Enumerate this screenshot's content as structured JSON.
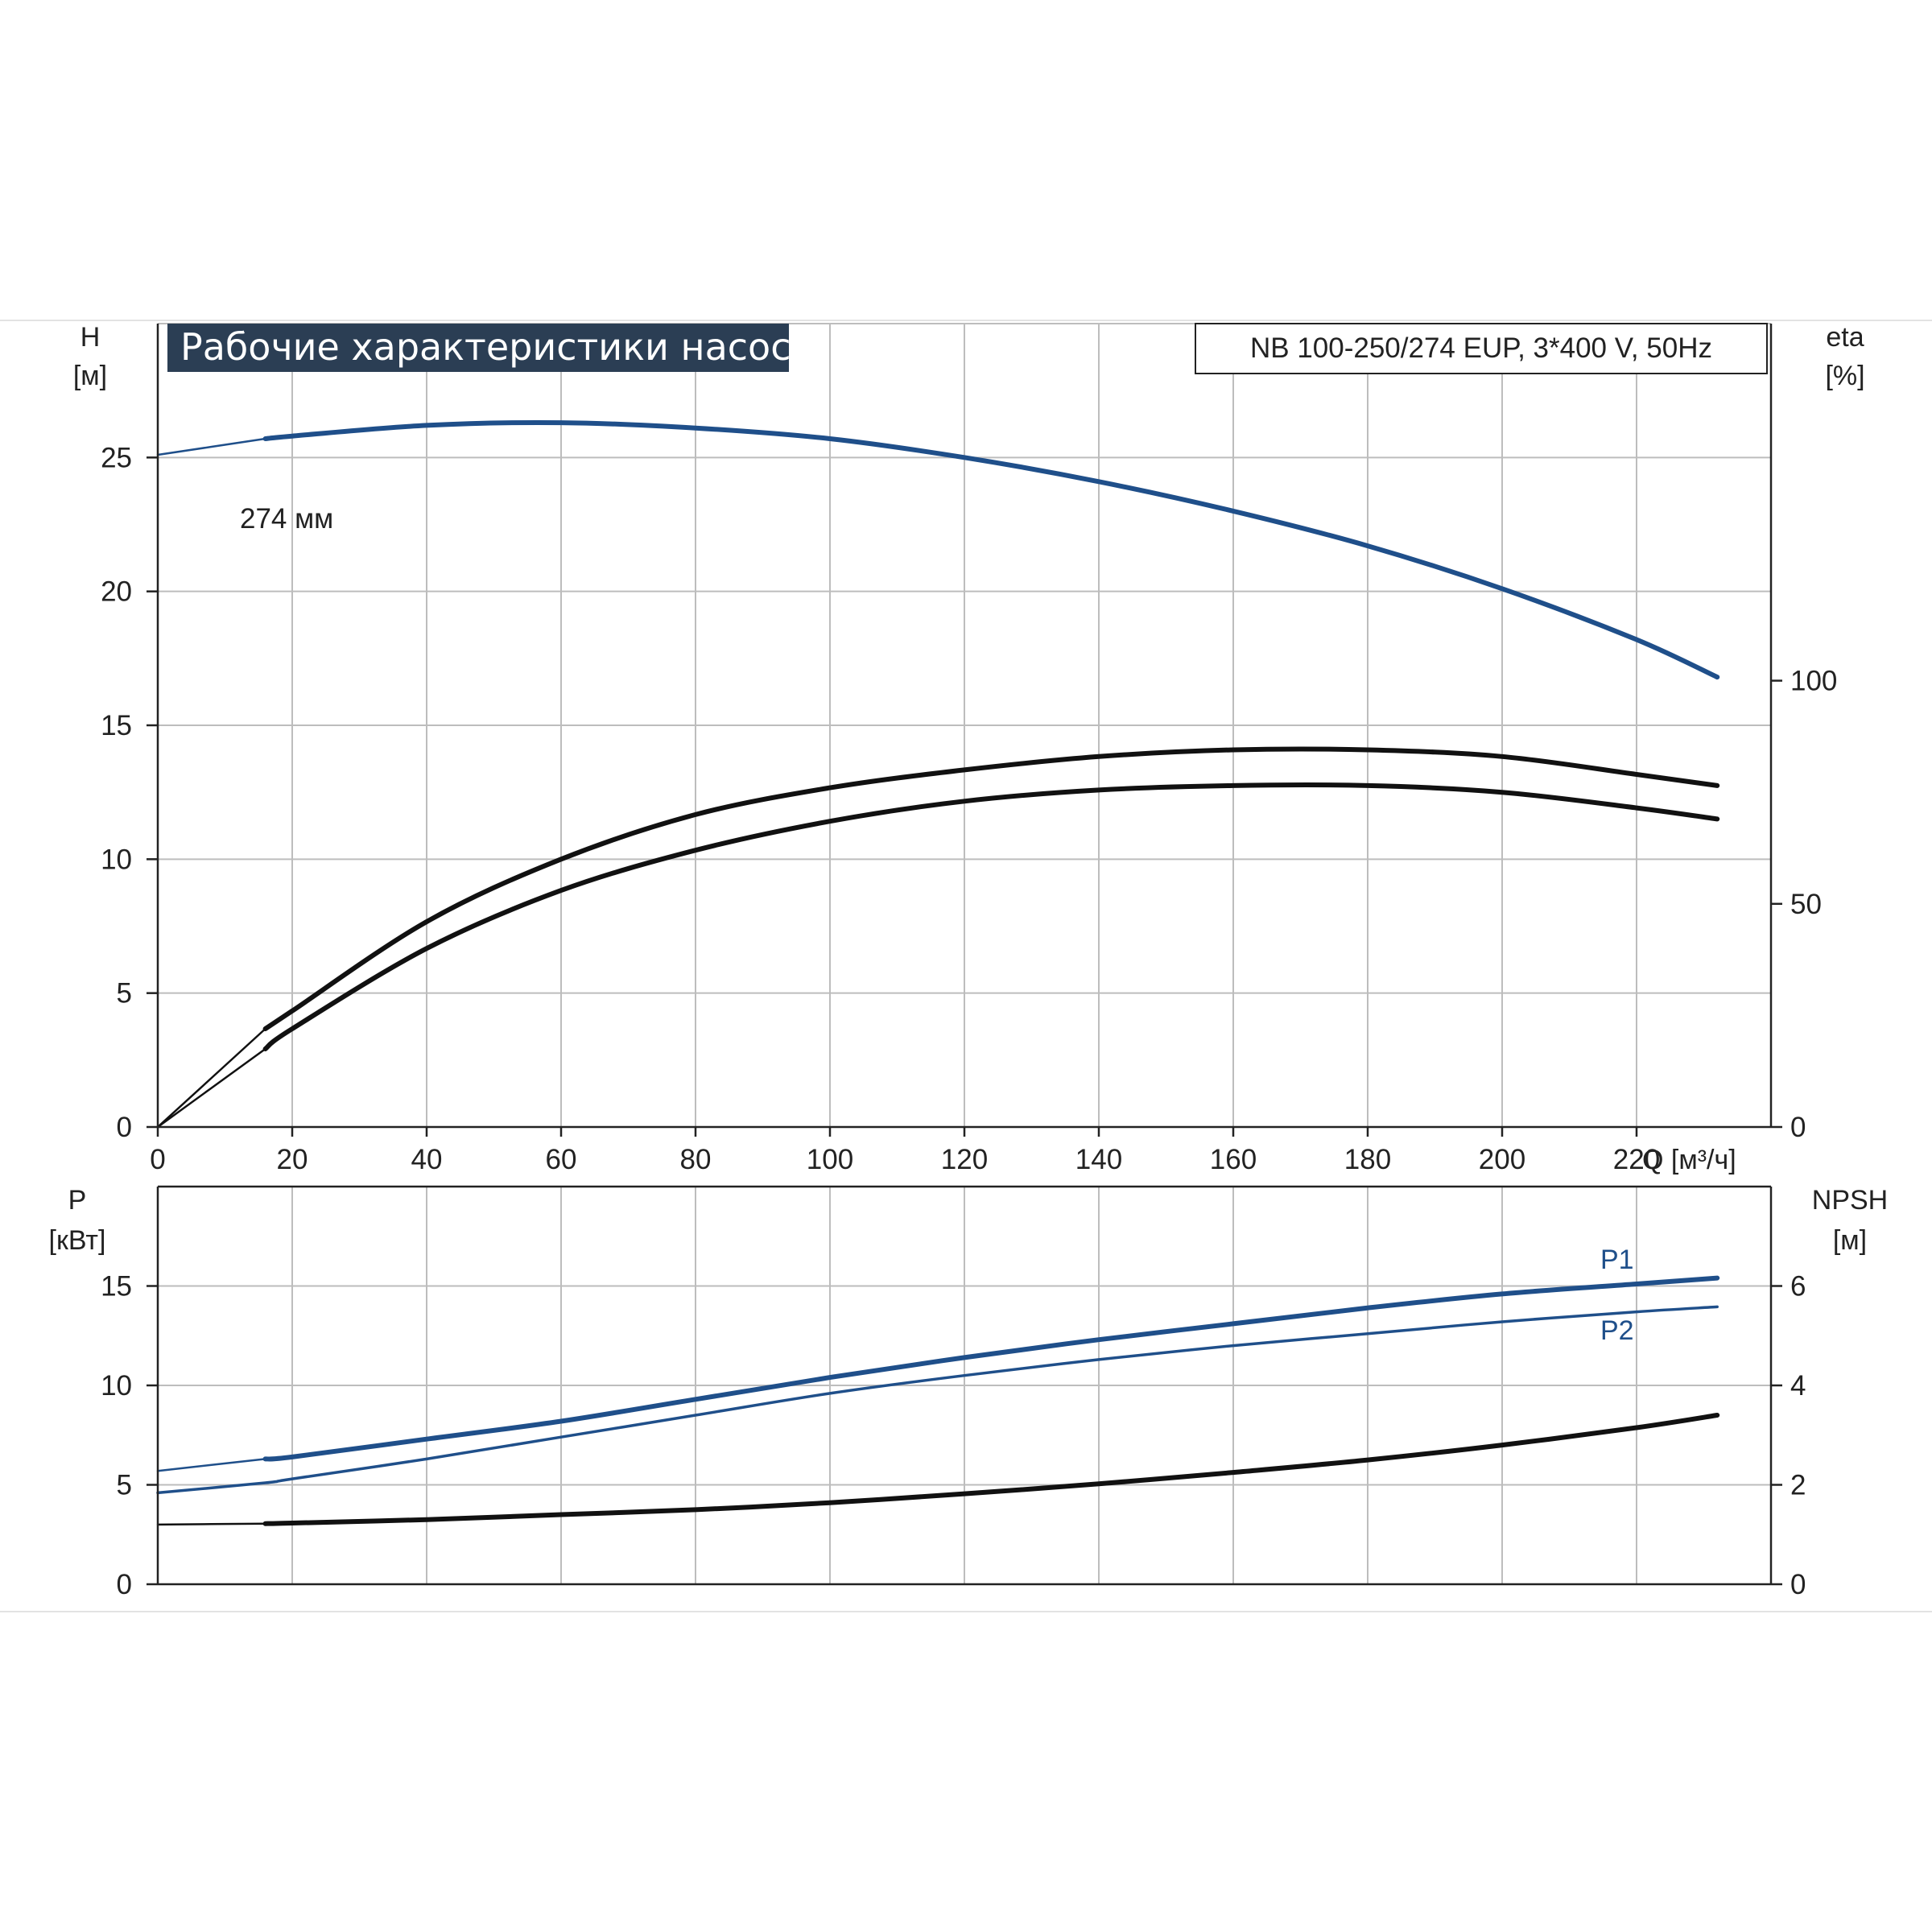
{
  "chart_data": [
    {
      "type": "line",
      "title": "Рабочие характеристики насоса",
      "model": "NB 100-250/274 EUP, 3*400 V, 50Hz",
      "xlabel": "Q [м³/ч]",
      "x_ticks": [
        "0",
        "20",
        "40",
        "60",
        "80",
        "100",
        "120",
        "140",
        "160",
        "180",
        "200",
        "220"
      ],
      "xlim": [
        0,
        240
      ],
      "y_left": {
        "label_line1": "H",
        "label_line2": "[м]",
        "ticks": [
          "0",
          "5",
          "10",
          "15",
          "20",
          "25"
        ],
        "ylim": [
          0,
          30
        ]
      },
      "y_right": {
        "label_line1": "eta",
        "label_line2": "[%]",
        "ticks": [
          "0",
          "50",
          "100"
        ],
        "ylim": [
          0,
          180
        ]
      },
      "grid": true,
      "annotation": "274 мм",
      "series": [
        {
          "id": "H",
          "axis": "left",
          "color": "#1f4f8a",
          "x": [
            0,
            16,
            20,
            40,
            60,
            80,
            100,
            120,
            140,
            160,
            180,
            200,
            220,
            232
          ],
          "y": [
            25.1,
            25.7,
            25.8,
            26.2,
            26.3,
            26.1,
            25.7,
            25.0,
            24.1,
            23.0,
            21.7,
            20.1,
            18.2,
            16.8
          ]
        },
        {
          "id": "eta_1",
          "axis": "right",
          "color": "#111111",
          "x": [
            0,
            16,
            20,
            40,
            60,
            80,
            100,
            120,
            140,
            160,
            180,
            200,
            220,
            232
          ],
          "y": [
            0,
            22,
            26,
            46,
            60,
            70,
            76,
            80,
            83,
            84.5,
            84.5,
            83,
            79,
            76.5
          ]
        },
        {
          "id": "eta_2",
          "axis": "right",
          "color": "#111111",
          "x": [
            0,
            16,
            20,
            40,
            60,
            80,
            100,
            120,
            140,
            160,
            180,
            200,
            220,
            232
          ],
          "y": [
            0,
            17.5,
            22,
            40,
            53,
            62,
            68.5,
            73,
            75.5,
            76.5,
            76.5,
            75,
            71.5,
            69
          ]
        }
      ]
    },
    {
      "type": "line",
      "xlim": [
        0,
        240
      ],
      "y_left": {
        "label_line1": "P",
        "label_line2": "[кВт]",
        "ticks": [
          "0",
          "5",
          "10",
          "15"
        ],
        "ylim": [
          0,
          20
        ]
      },
      "y_right": {
        "label_line1": "NPSH",
        "label_line2": "[м]",
        "ticks": [
          "0",
          "2",
          "4",
          "6"
        ],
        "ylim": [
          0,
          8
        ]
      },
      "grid": true,
      "series": [
        {
          "id": "P1",
          "name": "P1",
          "axis": "left",
          "color": "#1f4f8a",
          "x": [
            0,
            16,
            20,
            40,
            60,
            80,
            100,
            120,
            140,
            160,
            180,
            200,
            220,
            232
          ],
          "y": [
            5.7,
            6.3,
            6.4,
            7.3,
            8.2,
            9.3,
            10.4,
            11.4,
            12.3,
            13.1,
            13.9,
            14.6,
            15.1,
            15.4
          ]
        },
        {
          "id": "P2",
          "name": "P2",
          "axis": "left",
          "color": "#1f4f8a",
          "x": [
            0,
            16,
            20,
            40,
            60,
            80,
            100,
            120,
            140,
            160,
            180,
            200,
            220,
            232
          ],
          "y": [
            4.6,
            5.1,
            5.3,
            6.3,
            7.4,
            8.5,
            9.6,
            10.5,
            11.3,
            12.0,
            12.6,
            13.2,
            13.7,
            13.95
          ]
        },
        {
          "id": "NPSH",
          "axis": "right",
          "color": "#111111",
          "x": [
            0,
            16,
            20,
            40,
            60,
            80,
            100,
            120,
            140,
            160,
            180,
            200,
            220,
            232
          ],
          "y": [
            1.2,
            1.22,
            1.23,
            1.3,
            1.4,
            1.5,
            1.64,
            1.82,
            2.02,
            2.25,
            2.5,
            2.8,
            3.15,
            3.4
          ]
        }
      ]
    }
  ]
}
